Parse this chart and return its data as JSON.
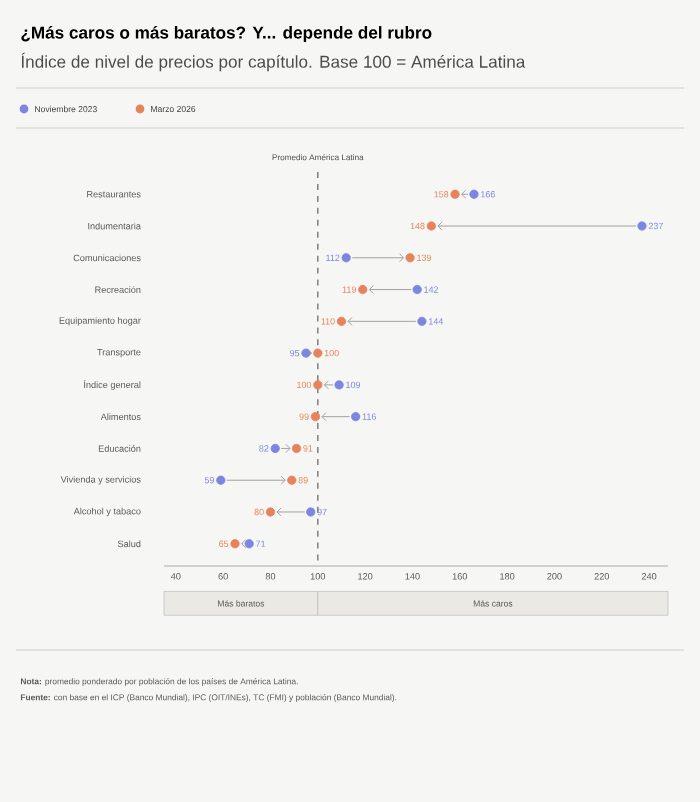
{
  "chart_data": {
    "type": "scatter",
    "title": "¿Más caros o más baratos? Y... depende del rubro",
    "subtitle": "Índice de nivel de precios por capítulo. Base 100 = América Latina",
    "categories": [
      "Restaurantes",
      "Indumentaria",
      "Comunicaciones",
      "Recreación",
      "Equipamiento hogar",
      "Transporte",
      "Índice general",
      "Alimentos",
      "Educación",
      "Vivienda y servicios",
      "Alcohol y tabaco",
      "Salud"
    ],
    "series": [
      {
        "name": "Noviembre 2023",
        "color": "#7b86e0",
        "values": [
          166,
          237,
          112,
          142,
          144,
          95,
          109,
          116,
          82,
          59,
          97,
          71
        ]
      },
      {
        "name": "Marzo 2026",
        "color": "#e8825a",
        "values": [
          158,
          148,
          139,
          119,
          110,
          100,
          100,
          99,
          91,
          89,
          80,
          65
        ]
      }
    ],
    "orientation": "horizontal",
    "xlim": [
      35,
      248
    ],
    "xticks": [
      40,
      60,
      80,
      100,
      120,
      140,
      160,
      180,
      200,
      220,
      240
    ],
    "ref_lines": [
      {
        "axis": "x",
        "value": 100,
        "label": "Promedio América Latina",
        "color": "#777777",
        "line_style": "dashed"
      }
    ],
    "annotations": [
      "Más baratos",
      "Más caros",
      "**Nota:** promedio ponderado por población de los países de América Latina.",
      "**Fuente:** con base en el ICP (Banco Mundial), IPC (OIT/INEs), TC (FMI) y población (Banco Mundial)."
    ],
    "data_labels": true,
    "marker": "circle",
    "legend": "top left",
    "grid": false
  }
}
